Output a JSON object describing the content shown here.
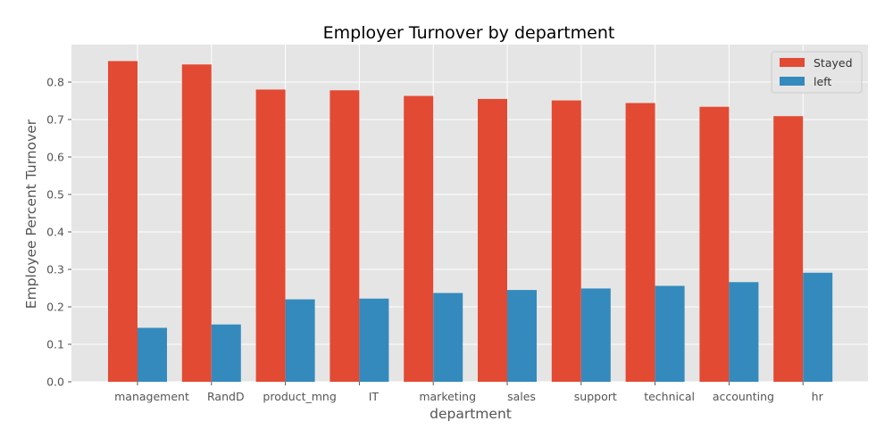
{
  "chart_data": {
    "type": "bar",
    "title": "Employer Turnover by department",
    "xlabel": "department",
    "ylabel": "Employee Percent Turnover",
    "categories": [
      "management",
      "RandD",
      "product_mng",
      "IT",
      "marketing",
      "sales",
      "support",
      "technical",
      "accounting",
      "hr"
    ],
    "series": [
      {
        "name": "Stayed",
        "color": "#E24A33",
        "values": [
          0.856,
          0.847,
          0.78,
          0.778,
          0.763,
          0.755,
          0.751,
          0.744,
          0.734,
          0.709
        ]
      },
      {
        "name": "left",
        "color": "#348ABD",
        "values": [
          0.144,
          0.153,
          0.22,
          0.222,
          0.237,
          0.245,
          0.249,
          0.256,
          0.266,
          0.291
        ]
      }
    ],
    "ylim": [
      0,
      0.9
    ],
    "yticks": [
      0.0,
      0.1,
      0.2,
      0.3,
      0.4,
      0.5,
      0.6,
      0.7,
      0.8
    ],
    "ytick_labels": [
      "0.0",
      "0.1",
      "0.2",
      "0.3",
      "0.4",
      "0.5",
      "0.6",
      "0.7",
      "0.8"
    ],
    "grid": true,
    "legend_position": "top-right",
    "background_color": "#E5E5E5",
    "grid_color": "#FFFFFF"
  }
}
